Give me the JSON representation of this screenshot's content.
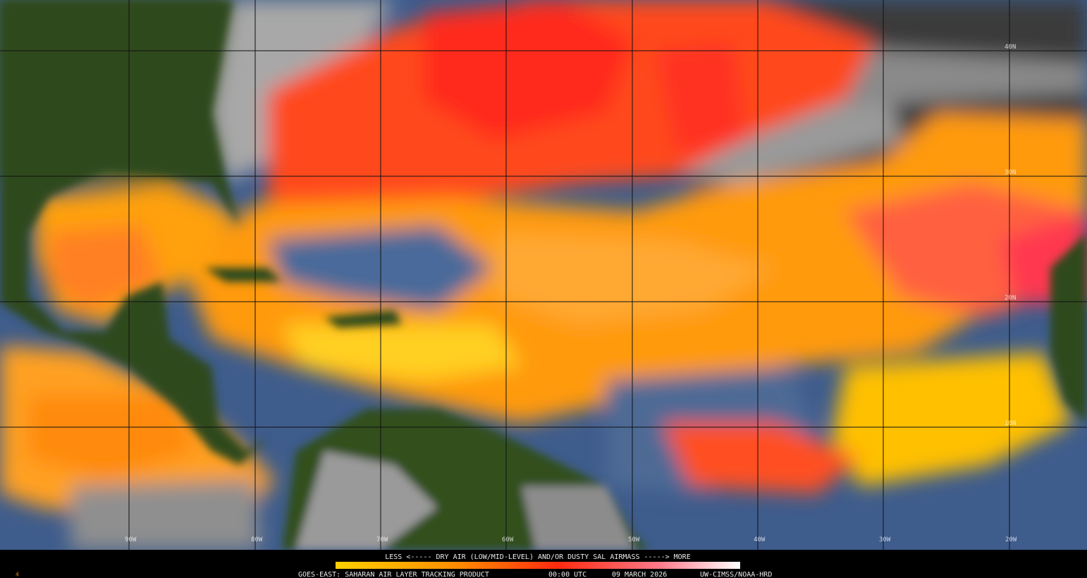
{
  "map": {
    "lat_labels": [
      "40N",
      "30N",
      "20N",
      "10N"
    ],
    "lon_labels": [
      "90W",
      "80W",
      "70W",
      "60W",
      "50W",
      "40W",
      "30W",
      "20W"
    ],
    "legend": "LESS <----- DRY AIR (LOW/MID-LEVEL) AND/OR DUSTY SAL AIRMASS -----> MORE",
    "footer": {
      "product": "GOES-EAST: SAHARAN AIR LAYER TRACKING PRODUCT",
      "time": "00:00 UTC",
      "date": "09 MARCH 2026",
      "credit": "UW-CIMSS/NOAA-HRD",
      "frame": "4"
    }
  }
}
